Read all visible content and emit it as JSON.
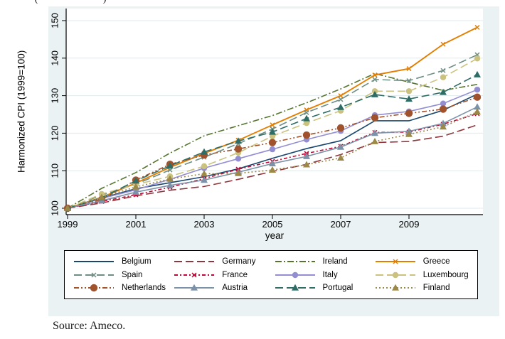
{
  "page": {
    "caption_fragment_left": "(",
    "caption_fragment_right": ")",
    "source_text": "Source: Ameco."
  },
  "chart_data": {
    "type": "line",
    "title": "",
    "ylabel": "Harmonized CPI (1999=100)",
    "xlabel": "year",
    "x": [
      1999,
      2000,
      2001,
      2002,
      2003,
      2004,
      2005,
      2006,
      2007,
      2008,
      2009,
      2010,
      2011
    ],
    "x_ticks": [
      1999,
      2001,
      2003,
      2005,
      2007,
      2009
    ],
    "y_ticks": [
      100,
      110,
      120,
      130,
      140,
      150
    ],
    "xlim": [
      1999,
      2011
    ],
    "ylim": [
      98,
      153
    ],
    "grid": true,
    "legend_position": "bottom",
    "colors": {
      "figure_background": "#eaf2f3",
      "plot_background": "#ffffff",
      "grid_line": "#dfeaec",
      "axis_line": "#000000",
      "text": "#000000"
    },
    "series": [
      {
        "name": "Belgium",
        "color": "#1a476f",
        "dash": "solid",
        "marker": "none",
        "values": [
          100,
          102.7,
          105.2,
          106.8,
          108.4,
          110.5,
          113.3,
          115.9,
          118.0,
          123.3,
          123.3,
          126.1,
          130.4
        ]
      },
      {
        "name": "Germany",
        "color": "#90353b",
        "dash": "longdash",
        "marker": "none",
        "values": [
          100,
          101.4,
          103.3,
          104.8,
          105.8,
          107.7,
          109.8,
          111.7,
          114.3,
          117.5,
          117.8,
          119.2,
          122.2
        ]
      },
      {
        "name": "Ireland",
        "color": "#55752f",
        "dash": "dashdot",
        "marker": "none",
        "values": [
          100,
          105.3,
          109.5,
          114.7,
          119.3,
          122.0,
          124.7,
          128.1,
          131.8,
          135.9,
          133.6,
          131.4,
          133.0
        ]
      },
      {
        "name": "Greece",
        "color": "#e37e00",
        "dash": "solid",
        "marker": "x",
        "values": [
          100,
          102.9,
          106.7,
          110.9,
          114.6,
          118.1,
          122.2,
          126.2,
          130.0,
          135.5,
          137.2,
          143.7,
          148.2
        ]
      },
      {
        "name": "Spain",
        "color": "#6e8e84",
        "dash": "longdash",
        "marker": "x",
        "values": [
          100,
          103.5,
          106.4,
          110.2,
          113.6,
          117.2,
          121.1,
          125.5,
          129.0,
          134.3,
          134.0,
          136.7,
          140.9
        ]
      },
      {
        "name": "France",
        "color": "#c10534",
        "dash": "shortdashdot",
        "marker": "x",
        "values": [
          100,
          101.8,
          103.6,
          105.6,
          107.9,
          110.4,
          112.5,
          114.6,
          116.5,
          120.2,
          120.3,
          122.4,
          125.2
        ]
      },
      {
        "name": "Italy",
        "color": "#938dd2",
        "dash": "solid",
        "marker": "circle",
        "values": [
          100,
          102.6,
          104.9,
          107.7,
          110.7,
          113.2,
          115.7,
          118.3,
          120.6,
          124.8,
          125.8,
          127.9,
          131.6
        ]
      },
      {
        "name": "Luxembourg",
        "color": "#cac27e",
        "dash": "longdash",
        "marker": "circle",
        "values": [
          100,
          103.8,
          106.3,
          108.5,
          111.2,
          114.8,
          119.2,
          122.7,
          126.0,
          131.2,
          131.2,
          134.9,
          139.9
        ]
      },
      {
        "name": "Netherlands",
        "color": "#a0522d",
        "dash": "dashdotdot",
        "marker": "bigcircle",
        "values": [
          100,
          102.3,
          107.5,
          111.7,
          114.2,
          115.8,
          117.5,
          119.5,
          121.4,
          124.1,
          125.3,
          126.4,
          129.6
        ]
      },
      {
        "name": "Austria",
        "color": "#7b92a8",
        "dash": "solid",
        "marker": "triangle",
        "values": [
          100,
          102.0,
          104.3,
          106.1,
          107.5,
          109.6,
          111.9,
          113.8,
          116.3,
          120.0,
          120.5,
          122.6,
          127.0
        ]
      },
      {
        "name": "Portugal",
        "color": "#2d6d66",
        "dash": "longdash",
        "marker": "triangle",
        "values": [
          100,
          102.8,
          107.3,
          111.3,
          115.0,
          117.9,
          120.3,
          123.9,
          126.9,
          130.3,
          129.1,
          130.9,
          135.6
        ]
      },
      {
        "name": "Finland",
        "color": "#9c8847",
        "dash": "dot",
        "marker": "triangle",
        "values": [
          100,
          102.9,
          105.7,
          107.8,
          109.2,
          109.3,
          110.2,
          111.6,
          113.4,
          117.8,
          119.7,
          121.7,
          125.7
        ]
      }
    ],
    "legend_order": [
      "Belgium",
      "Germany",
      "Ireland",
      "Greece",
      "Spain",
      "France",
      "Italy",
      "Luxembourg",
      "Netherlands",
      "Austria",
      "Portugal",
      "Finland"
    ]
  }
}
